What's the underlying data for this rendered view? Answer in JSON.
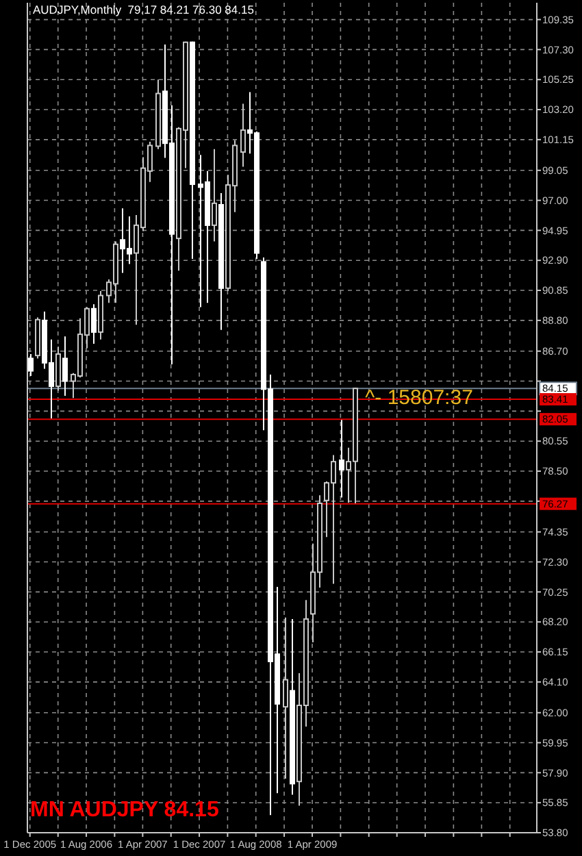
{
  "chart_data": {
    "type": "candlestick",
    "title": "AUDJPY,Monthly  79.17 84.21 76.30 84.15",
    "x": [
      "2005-12",
      "2006-01",
      "2006-02",
      "2006-03",
      "2006-04",
      "2006-05",
      "2006-06",
      "2006-07",
      "2006-08",
      "2006-09",
      "2006-10",
      "2006-11",
      "2006-12",
      "2007-01",
      "2007-02",
      "2007-03",
      "2007-04",
      "2007-05",
      "2007-06",
      "2007-07",
      "2007-08",
      "2007-09",
      "2007-10",
      "2007-11",
      "2007-12",
      "2008-01",
      "2008-02",
      "2008-03",
      "2008-04",
      "2008-05",
      "2008-06",
      "2008-07",
      "2008-08",
      "2008-09",
      "2008-10",
      "2008-11",
      "2008-12",
      "2009-01",
      "2009-02",
      "2009-03",
      "2009-04",
      "2009-05",
      "2009-06",
      "2009-07",
      "2009-08",
      "2009-09",
      "2009-10"
    ],
    "ohlc": [
      [
        86.2,
        86.5,
        85.0,
        85.35
      ],
      [
        86.4,
        89.0,
        86.2,
        88.85
      ],
      [
        88.8,
        89.4,
        85.5,
        85.9
      ],
      [
        85.9,
        87.5,
        82.1,
        84.3
      ],
      [
        84.3,
        87.0,
        84.0,
        86.5
      ],
      [
        86.2,
        87.7,
        83.65,
        84.65
      ],
      [
        84.65,
        85.2,
        83.5,
        85.1
      ],
      [
        85.0,
        88.95,
        84.9,
        87.85
      ],
      [
        87.8,
        89.7,
        86.9,
        89.6
      ],
      [
        89.6,
        89.9,
        87.2,
        88.0
      ],
      [
        88.0,
        90.8,
        87.5,
        90.5
      ],
      [
        90.5,
        91.6,
        90.0,
        91.4
      ],
      [
        91.3,
        94.2,
        90.0,
        94.0
      ],
      [
        94.3,
        96.45,
        92.05,
        93.7
      ],
      [
        93.7,
        95.9,
        92.65,
        93.35
      ],
      [
        93.4,
        96.0,
        88.5,
        95.3
      ],
      [
        95.15,
        99.95,
        94.9,
        99.2
      ],
      [
        99.0,
        101.0,
        98.25,
        100.75
      ],
      [
        100.7,
        105.25,
        100.5,
        104.3
      ],
      [
        104.45,
        107.65,
        99.9,
        100.9
      ],
      [
        100.9,
        103.5,
        85.8,
        94.7
      ],
      [
        94.4,
        102.0,
        92.2,
        101.9
      ],
      [
        101.8,
        107.85,
        99.2,
        107.8
      ],
      [
        107.8,
        107.85,
        93.0,
        98.1
      ],
      [
        98.1,
        100.1,
        89.7,
        97.9
      ],
      [
        98.25,
        99.0,
        90.0,
        95.3
      ],
      [
        95.3,
        100.5,
        94.2,
        96.8
      ],
      [
        96.7,
        97.5,
        88.15,
        91.0
      ],
      [
        91.0,
        98.75,
        90.8,
        98.05
      ],
      [
        98.0,
        101.1,
        96.2,
        100.75
      ],
      [
        100.3,
        103.6,
        99.3,
        101.8
      ],
      [
        101.8,
        104.4,
        100.2,
        101.6
      ],
      [
        101.6,
        101.7,
        93.0,
        93.4
      ],
      [
        92.8,
        93.1,
        81.3,
        84.1
      ],
      [
        84.1,
        85.1,
        55.0,
        65.5
      ],
      [
        66.0,
        70.6,
        56.5,
        62.6
      ],
      [
        62.4,
        68.5,
        57.5,
        64.25
      ],
      [
        63.5,
        68.4,
        56.4,
        57.15
      ],
      [
        57.3,
        64.7,
        55.65,
        62.5
      ],
      [
        62.5,
        69.7,
        61.05,
        68.4
      ],
      [
        68.75,
        73.55,
        66.8,
        71.6
      ],
      [
        71.6,
        76.85,
        70.55,
        76.3
      ],
      [
        76.5,
        77.8,
        74.0,
        77.7
      ],
      [
        77.7,
        79.6,
        70.8,
        79.15
      ],
      [
        79.25,
        82.0,
        76.7,
        78.6
      ],
      [
        78.6,
        80.1,
        76.35,
        79.15
      ],
      [
        79.17,
        84.21,
        76.3,
        84.15
      ]
    ],
    "xlim": [
      "2005-11-20",
      "2011-11-25"
    ],
    "xticks": [
      {
        "value": "2005-12-01",
        "label": "1 Dec 2005"
      },
      {
        "value": "2006-04-01",
        "label": null
      },
      {
        "value": "2006-08-01",
        "label": "1 Aug 2006"
      },
      {
        "value": "2006-12-01",
        "label": null
      },
      {
        "value": "2007-04-01",
        "label": "1 Apr 2007"
      },
      {
        "value": "2007-08-01",
        "label": null
      },
      {
        "value": "2007-12-01",
        "label": "1 Dec 2007"
      },
      {
        "value": "2008-04-01",
        "label": null
      },
      {
        "value": "2008-08-01",
        "label": "1 Aug 2008"
      },
      {
        "value": "2008-12-01",
        "label": null
      },
      {
        "value": "2009-04-01",
        "label": "1 Apr 2009"
      },
      {
        "value": "2009-08-01",
        "label": null
      },
      {
        "value": "2009-12-01",
        "label": null
      },
      {
        "value": "2010-04-01",
        "label": null
      },
      {
        "value": "2010-08-01",
        "label": null
      },
      {
        "value": "2010-12-01",
        "label": null
      },
      {
        "value": "2011-04-01",
        "label": null
      },
      {
        "value": "2011-08-01",
        "label": null
      }
    ],
    "ylim": [
      53.8,
      110.5
    ],
    "yticks": [
      {
        "value": 53.8,
        "label": "53.80"
      },
      {
        "value": 55.85,
        "label": "55.85"
      },
      {
        "value": 57.9,
        "label": "57.90"
      },
      {
        "value": 59.95,
        "label": "59.95"
      },
      {
        "value": 62.0,
        "label": "62.00"
      },
      {
        "value": 64.1,
        "label": "64.10"
      },
      {
        "value": 66.15,
        "label": "66.15"
      },
      {
        "value": 68.2,
        "label": "68.20"
      },
      {
        "value": 70.25,
        "label": "70.25"
      },
      {
        "value": 72.3,
        "label": "72.30"
      },
      {
        "value": 74.35,
        "label": "74.35"
      },
      {
        "value": 76.45,
        "label": null
      },
      {
        "value": 78.5,
        "label": "78.50"
      },
      {
        "value": 80.55,
        "label": "80.55"
      },
      {
        "value": 82.6,
        "label": null
      },
      {
        "value": 84.65,
        "label": null
      },
      {
        "value": 86.7,
        "label": "86.70"
      },
      {
        "value": 88.8,
        "label": "88.80"
      },
      {
        "value": 90.85,
        "label": "90.85"
      },
      {
        "value": 92.9,
        "label": "92.90"
      },
      {
        "value": 94.95,
        "label": "94.95"
      },
      {
        "value": 97.0,
        "label": "97.00"
      },
      {
        "value": 99.05,
        "label": "99.05"
      },
      {
        "value": 101.15,
        "label": "101.15"
      },
      {
        "value": 103.2,
        "label": "103.20"
      },
      {
        "value": 105.25,
        "label": "105.25"
      },
      {
        "value": 107.3,
        "label": "107.30"
      },
      {
        "value": 109.35,
        "label": "109.35"
      }
    ],
    "grid": true,
    "ref_lines": [
      {
        "axis": "y",
        "value": 84.15,
        "label": "84.15",
        "color": "#708090"
      },
      {
        "axis": "y",
        "value": 83.41,
        "label": "83.41",
        "color": "#e00000"
      },
      {
        "axis": "y",
        "value": 82.05,
        "label": "82.05",
        "color": "#e00000"
      },
      {
        "axis": "y",
        "value": 76.27,
        "label": "76.27",
        "color": "#e00000"
      }
    ],
    "annotations": [
      {
        "text": "^- 15807:37",
        "x": "2009-11-15",
        "y": 83.6
      },
      "MN AUDJPY 84.15"
    ]
  }
}
